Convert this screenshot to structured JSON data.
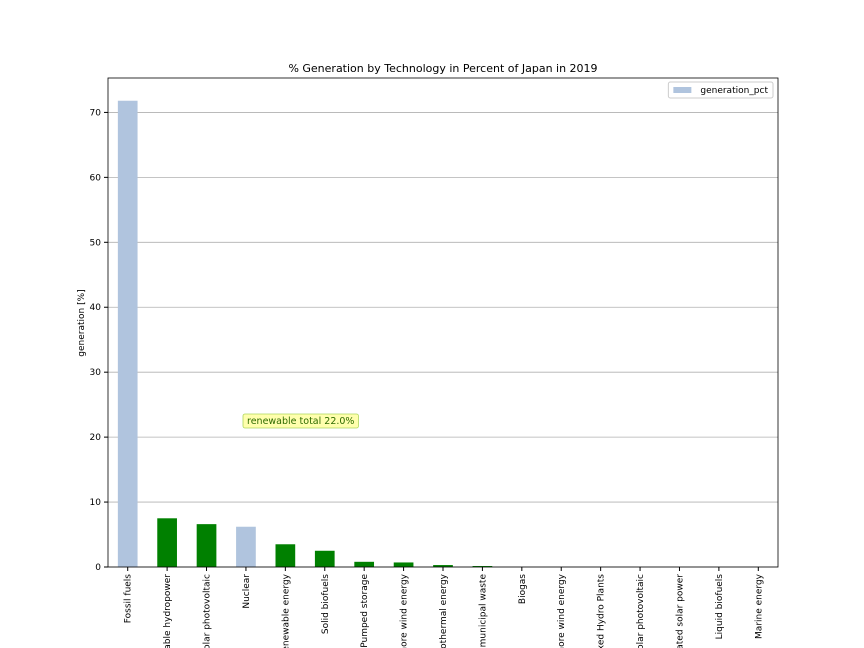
{
  "chart_data": {
    "type": "bar",
    "title": "% Generation by Technology in Percent of Japan in 2019",
    "y_label": "generation [%]",
    "annotation": "renewable total 22.0%",
    "categories": [
      "Fossil fuels",
      "vable hydropower",
      "Solar photovoltaic",
      "Nuclear",
      "renewable energy",
      "Solid biofuels",
      "Pumped storage",
      "hore wind energy",
      "eothermal energy",
      "e municipal waste",
      "Biogas",
      "hore wind energy",
      "lixed Hydro Plants",
      "Solar photovoltaic",
      "rated solar power",
      "Liquid biofuels",
      "Marine energy"
    ],
    "series": [
      {
        "name": "generation_pct",
        "color": "#b0c4de",
        "colors": [
          "#b0c4de",
          "#008000",
          "#008000",
          "#b0c4de",
          "#008000",
          "#008000",
          "#008000",
          "#008000",
          "#008000",
          "#008000",
          "#008000",
          "#008000",
          "#008000",
          "#008000",
          "#008000",
          "#008000",
          "#008000"
        ],
        "values": [
          71.8,
          7.5,
          6.6,
          6.2,
          3.5,
          2.5,
          0.8,
          0.7,
          0.3,
          0.15,
          0,
          0,
          0,
          0,
          0,
          0,
          0
        ]
      }
    ],
    "ylim": [
      0,
      75.3
    ],
    "yticks": [
      0,
      10,
      20,
      30,
      40,
      50,
      60,
      70
    ],
    "grid": true,
    "legend": "upper right"
  }
}
